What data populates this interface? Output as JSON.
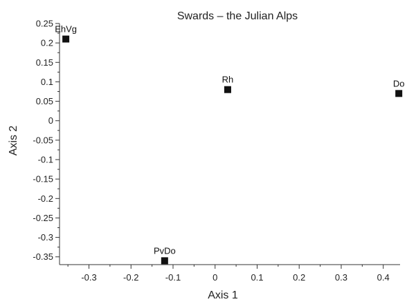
{
  "chart_data": {
    "type": "scatter",
    "title": "Swards – the Julian Alps",
    "xlabel": "Axis 1",
    "ylabel": "Axis 2",
    "xlim": [
      -0.37,
      0.44
    ],
    "ylim": [
      -0.37,
      0.25
    ],
    "x_ticks": [
      "-0.3",
      "-0.2",
      "-0.1",
      "0",
      "0.1",
      "0.2",
      "0.3",
      "0.4"
    ],
    "y_ticks": [
      "0.25",
      "0.2",
      "0.15",
      "0.1",
      "0.05",
      "0",
      "-0.05",
      "-0.1",
      "-0.15",
      "-0.2",
      "-0.25",
      "-0.3",
      "-0.35"
    ],
    "grid": false,
    "points": [
      {
        "label": "EhVg",
        "x": -0.355,
        "y": 0.21
      },
      {
        "label": "Rh",
        "x": 0.03,
        "y": 0.08
      },
      {
        "label": "Do",
        "x": 0.437,
        "y": 0.07
      },
      {
        "label": "PvDo",
        "x": -0.12,
        "y": -0.36
      }
    ],
    "marker_color": "#111111"
  }
}
